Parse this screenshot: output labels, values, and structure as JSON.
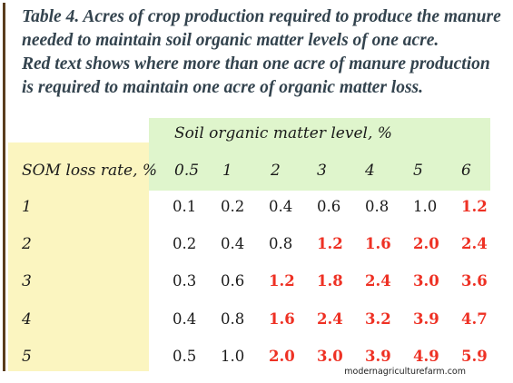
{
  "caption": {
    "line1": "Table 4. Acres of crop production required to produce the manure",
    "line2": "needed to maintain soil organic matter levels of one acre.",
    "line3": "Red text shows where more than one acre of manure production",
    "line4": "is required to maintain one acre of organic matter loss."
  },
  "table": {
    "column_group_header": "Soil organic matter level, %",
    "row_header_label": "SOM loss rate, %",
    "columns": [
      "0.5",
      "1",
      "2",
      "3",
      "4",
      "5",
      "6"
    ],
    "rows": [
      {
        "label": "1",
        "values": [
          "0.1",
          "0.2",
          "0.4",
          "0.6",
          "0.8",
          "1.0",
          "1.2"
        ],
        "red": [
          false,
          false,
          false,
          false,
          false,
          false,
          true
        ]
      },
      {
        "label": "2",
        "values": [
          "0.2",
          "0.4",
          "0.8",
          "1.2",
          "1.6",
          "2.0",
          "2.4"
        ],
        "red": [
          false,
          false,
          false,
          true,
          true,
          true,
          true
        ]
      },
      {
        "label": "3",
        "values": [
          "0.3",
          "0.6",
          "1.2",
          "1.8",
          "2.4",
          "3.0",
          "3.6"
        ],
        "red": [
          false,
          false,
          true,
          true,
          true,
          true,
          true
        ]
      },
      {
        "label": "4",
        "values": [
          "0.4",
          "0.8",
          "1.6",
          "2.4",
          "3.2",
          "3.9",
          "4.7"
        ],
        "red": [
          false,
          false,
          true,
          true,
          true,
          true,
          true
        ]
      },
      {
        "label": "5",
        "values": [
          "0.5",
          "1.0",
          "2.0",
          "3.0",
          "3.9",
          "4.9",
          "5.9"
        ],
        "red": [
          false,
          false,
          true,
          true,
          true,
          true,
          true
        ]
      }
    ]
  },
  "colors": {
    "caption_text": "#33434e",
    "highlight_red": "#ee3124",
    "header_green": "#dff5cc",
    "row_label_yellow": "#fbf5c0",
    "rule_brown": "#5a3d1e"
  },
  "watermark": "modernagriculturefarm.com"
}
